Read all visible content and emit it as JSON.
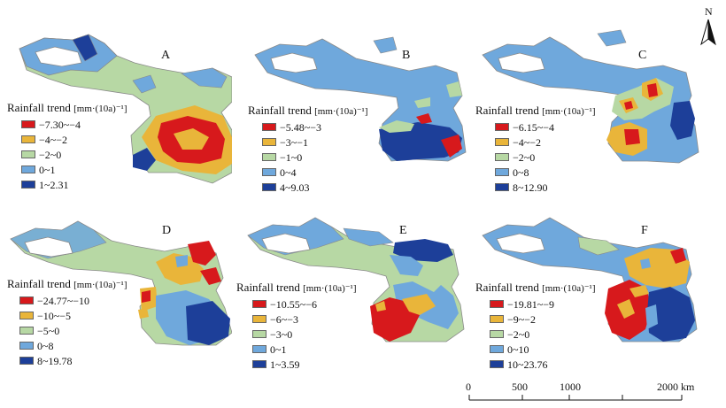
{
  "north_arrow": {
    "label": "N"
  },
  "legend_title": {
    "text": "Rainfall trend",
    "unit": "[mm·(10a)⁻¹]"
  },
  "colors": {
    "red": "#d7191c",
    "orange": "#e9b53a",
    "lightgreen": "#b7d8a4",
    "lightblue": "#6fa8dc",
    "darkblue": "#1d3f99",
    "outline": "#8a8a8a"
  },
  "panels": [
    {
      "letter": "A",
      "classes": [
        "−7.30~−4",
        "−4~−2",
        "−2~0",
        "0~1",
        "1~2.31"
      ]
    },
    {
      "letter": "B",
      "classes": [
        "−5.48~−3",
        "−3~−1",
        "−1~0",
        "0~4",
        "4~9.03"
      ]
    },
    {
      "letter": "C",
      "classes": [
        "−6.15~−4",
        "−4~−2",
        "−2~0",
        "0~8",
        "8~12.90"
      ]
    },
    {
      "letter": "D",
      "classes": [
        "−24.77~−10",
        "−10~−5",
        "−5~0",
        "0~8",
        "8~19.78"
      ]
    },
    {
      "letter": "E",
      "classes": [
        "−10.55~−6",
        "−6~−3",
        "−3~0",
        "0~1",
        "1~3.59"
      ]
    },
    {
      "letter": "F",
      "classes": [
        "−19.81~−9",
        "−9~−2",
        "−2~0",
        "0~10",
        "10~23.76"
      ]
    }
  ],
  "scale_bar": {
    "ticks": [
      "0",
      "500",
      "1000",
      "2000 km"
    ]
  }
}
